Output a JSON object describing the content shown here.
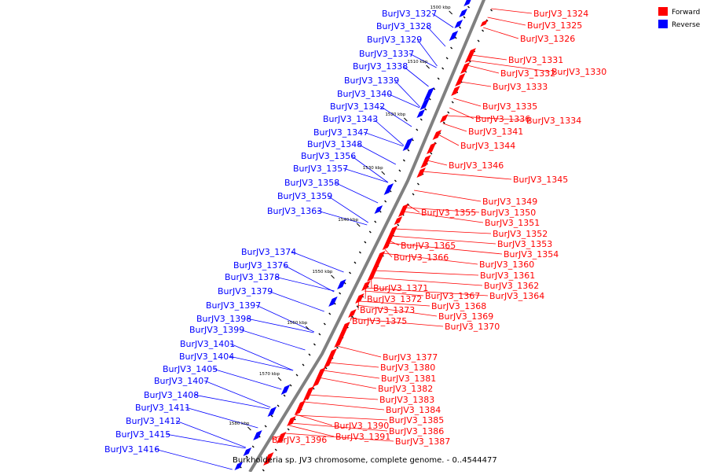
{
  "caption": "Burkholderia sp. JV3 chromosome, complete genome. - 0..4544477",
  "legend": {
    "forward": {
      "label": "Forward",
      "color": "#ff0000"
    },
    "reverse": {
      "label": "Reverse",
      "color": "#0000ff"
    }
  },
  "colors": {
    "axis": "#808080",
    "forward": "#ff0000",
    "reverse": "#0000ff"
  },
  "ticks": [
    "1500 kbp",
    "1510 kbp",
    "1520 kbp",
    "1530 kbp",
    "1540 kbp",
    "1550 kbp",
    "1560 kbp",
    "1570 kbp",
    "1580 kbp"
  ],
  "forward_labels": [
    "BurJV3_1324",
    "BurJV3_1325",
    "BurJV3_1326",
    "BurJV3_1331",
    "BurJV3_1332",
    "BurJV3_1330",
    "BurJV3_1333",
    "BurJV3_1335",
    "BurJV3_1336",
    "BurJV3_1334",
    "BurJV3_1341",
    "BurJV3_1344",
    "BurJV3_1346",
    "BurJV3_1345",
    "BurJV3_1349",
    "BurJV3_1350",
    "BurJV3_1355",
    "BurJV3_1351",
    "BurJV3_1352",
    "BurJV3_1353",
    "BurJV3_1354",
    "BurJV3_1365",
    "BurJV3_1366",
    "BurJV3_1360",
    "BurJV3_1361",
    "BurJV3_1362",
    "BurJV3_1371",
    "BurJV3_1367",
    "BurJV3_1364",
    "BurJV3_1372",
    "BurJV3_1368",
    "BurJV3_1373",
    "BurJV3_1369",
    "BurJV3_1375",
    "BurJV3_1370",
    "BurJV3_1377",
    "BurJV3_1380",
    "BurJV3_1381",
    "BurJV3_1382",
    "BurJV3_1383",
    "BurJV3_1384",
    "BurJV3_1390",
    "BurJV3_1385",
    "BurJV3_1386",
    "BurJV3_1391",
    "BurJV3_1396",
    "BurJV3_1387"
  ],
  "reverse_labels": [
    "BurJV3_1327",
    "BurJV3_1328",
    "BurJV3_1329",
    "BurJV3_1337",
    "BurJV3_1338",
    "BurJV3_1339",
    "BurJV3_1340",
    "BurJV3_1342",
    "BurJV3_1343",
    "BurJV3_1347",
    "BurJV3_1348",
    "BurJV3_1356",
    "BurJV3_1357",
    "BurJV3_1358",
    "BurJV3_1359",
    "BurJV3_1363",
    "BurJV3_1374",
    "BurJV3_1376",
    "BurJV3_1378",
    "BurJV3_1379",
    "BurJV3_1397",
    "BurJV3_1398",
    "BurJV3_1399",
    "BurJV3_1401",
    "BurJV3_1404",
    "BurJV3_1405",
    "BurJV3_1407",
    "BurJV3_1408",
    "BurJV3_1411",
    "BurJV3_1412",
    "BurJV3_1415",
    "BurJV3_1416"
  ]
}
